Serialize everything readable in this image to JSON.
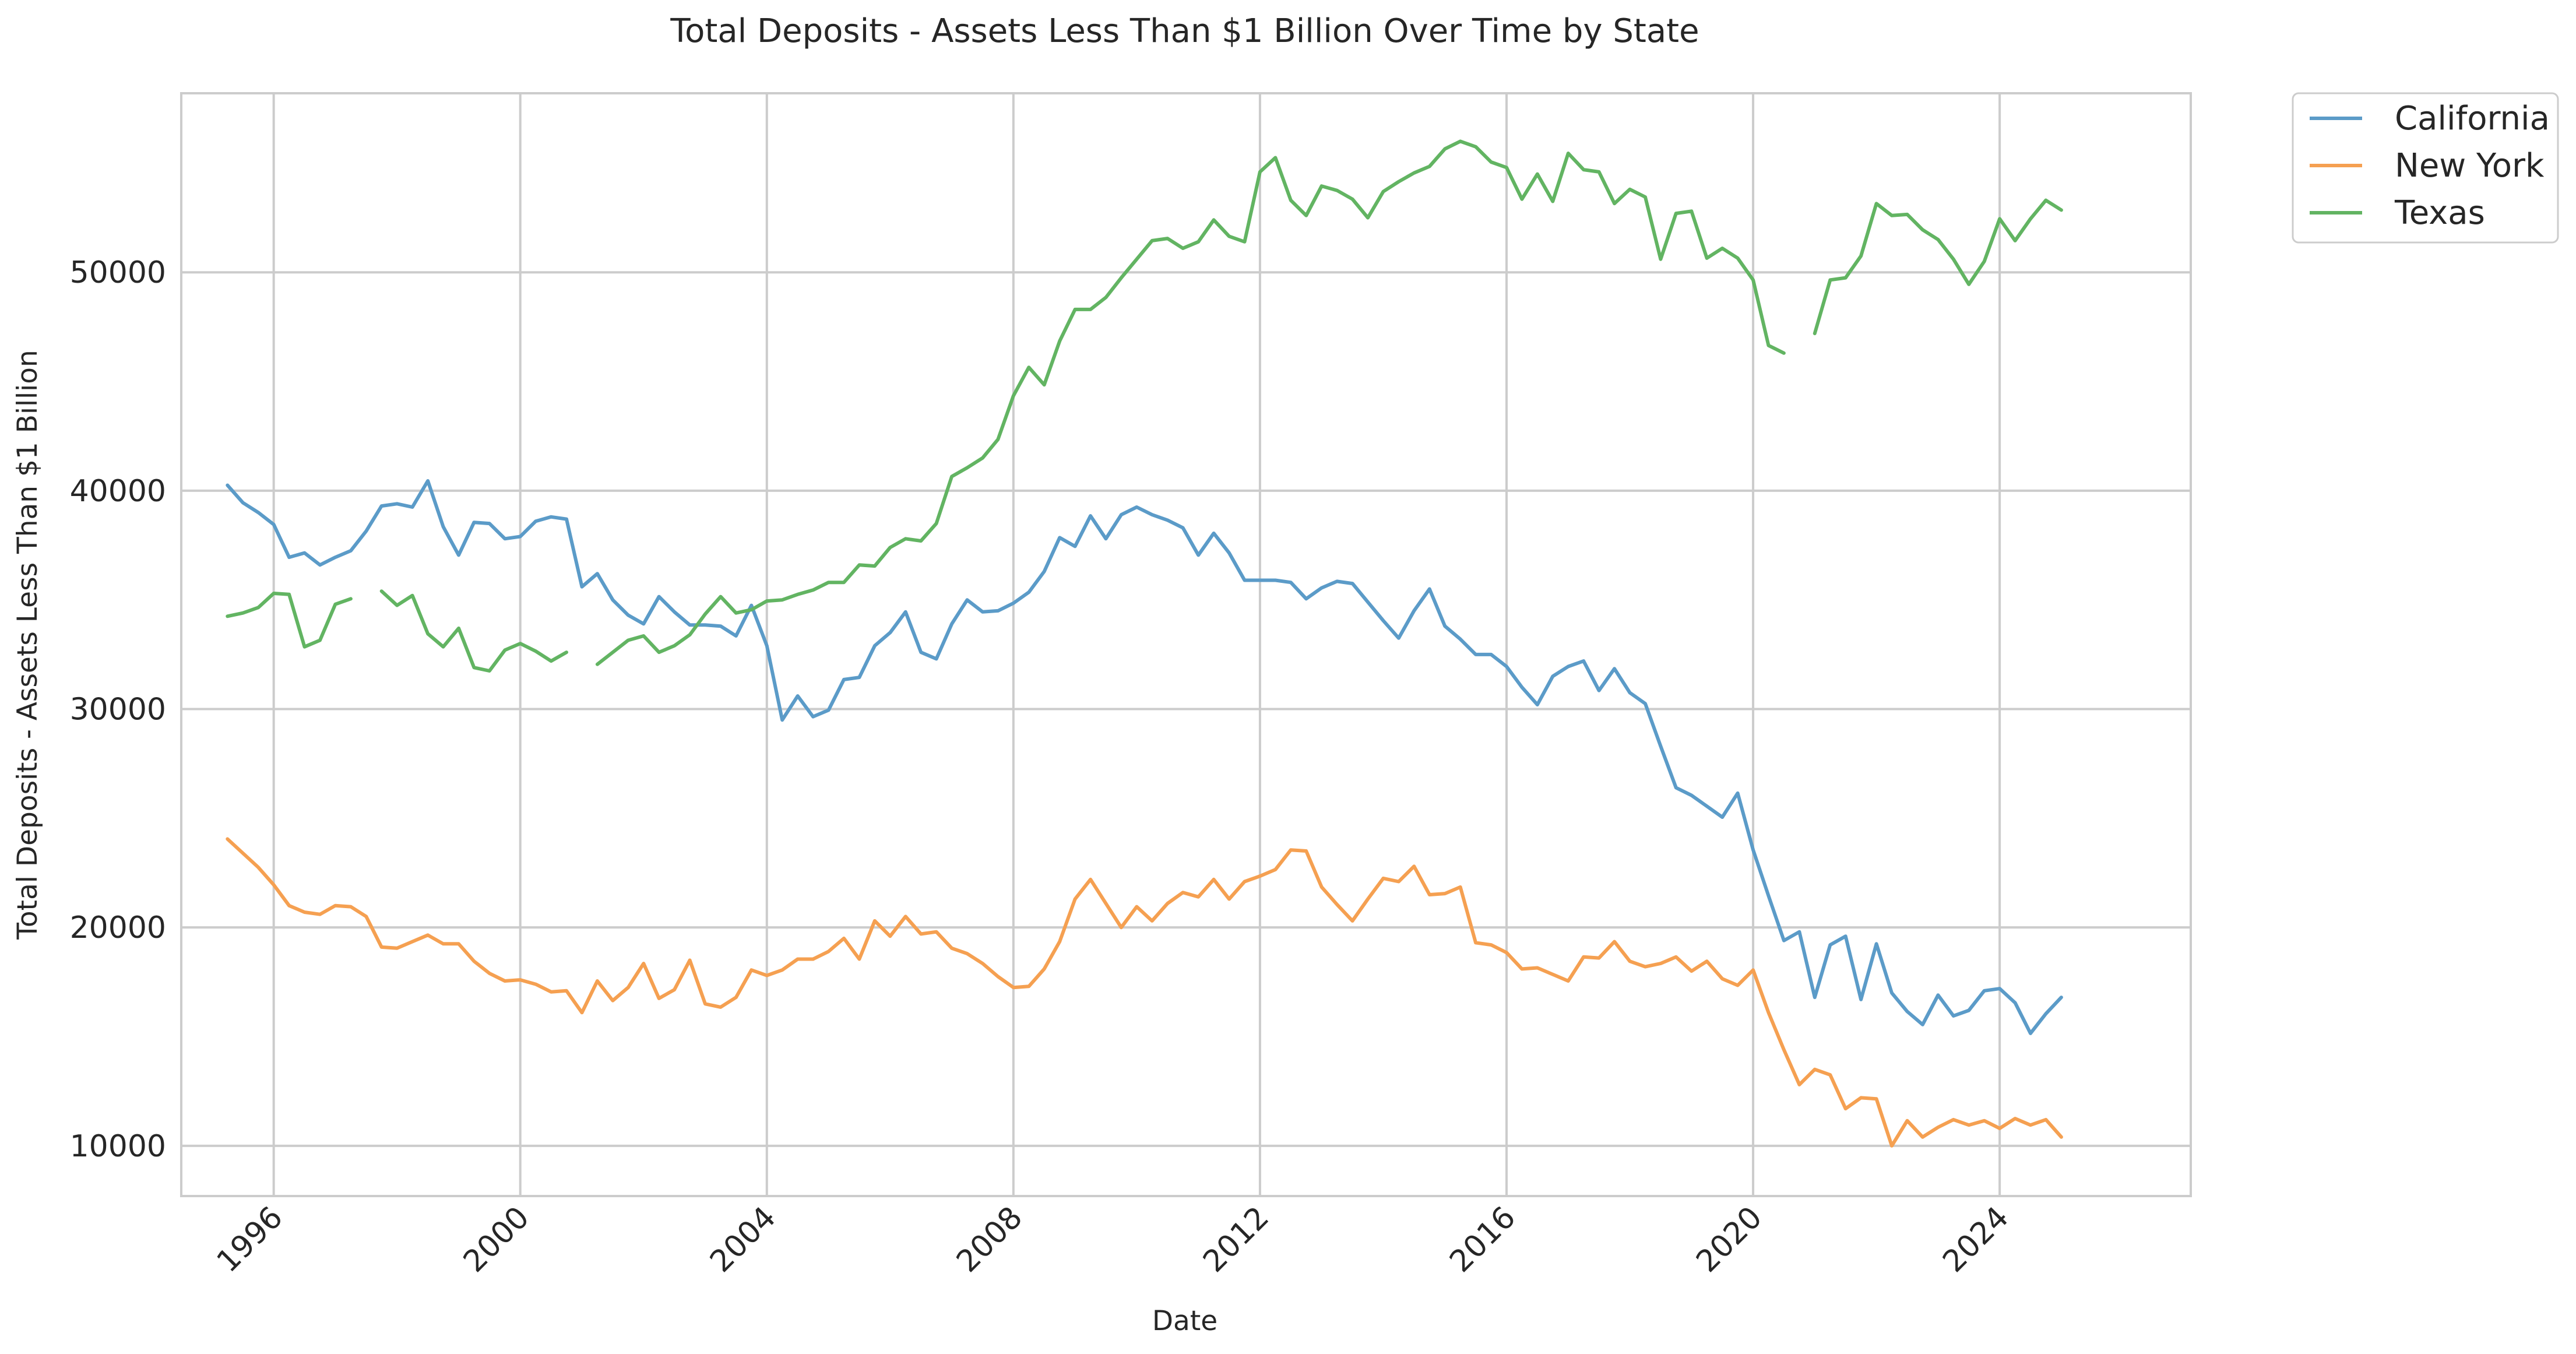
{
  "chart_data": {
    "type": "line",
    "title": "Total Deposits - Assets Less Than $1 Billion Over Time by State",
    "xlabel": "Date",
    "ylabel": "Total Deposits - Assets Less Than $1 Billion",
    "x_tick_labels": [
      "1996",
      "2000",
      "2004",
      "2008",
      "2012",
      "2016",
      "2020",
      "2024"
    ],
    "y_ticks": [
      10000,
      20000,
      30000,
      40000,
      50000
    ],
    "y_tick_labels": [
      "10000",
      "20000",
      "30000",
      "40000",
      "50000"
    ],
    "xlim": [
      1994.5,
      2027.1
    ],
    "ylim": [
      7700,
      58200
    ],
    "grid": true,
    "legend_position": "outside top-right",
    "x_start": 1995.25,
    "x_step": 0.25,
    "series": [
      {
        "name": "California",
        "color": "#5b9bc8",
        "values": [
          40250,
          39450,
          39000,
          38450,
          36950,
          37150,
          36600,
          36950,
          37250,
          38150,
          39300,
          39400,
          39250,
          40450,
          38350,
          37050,
          38550,
          38500,
          37800,
          37900,
          38600,
          38800,
          38700,
          35600,
          36200,
          35000,
          34300,
          33900,
          35150,
          34450,
          33850,
          33850,
          33800,
          33350,
          34750,
          32900,
          29500,
          30600,
          29650,
          29950,
          31350,
          31450,
          32900,
          33500,
          34450,
          32600,
          32300,
          33900,
          35000,
          34450,
          34500,
          34850,
          35350,
          36300,
          37850,
          37450,
          38850,
          37800,
          38900,
          39250,
          38900,
          38650,
          38300,
          37050,
          38050,
          37150,
          35900,
          35900,
          35900,
          35800,
          35050,
          35550,
          35850,
          35750,
          34900,
          34050,
          33250,
          34500,
          35500,
          33800,
          33200,
          32500,
          32500,
          31950,
          31000,
          30200,
          31500,
          31950,
          32200,
          30850,
          31850,
          30750,
          30250,
          28300,
          26400,
          26050,
          25550,
          25050,
          26150,
          23550,
          21450,
          19400,
          19800,
          16800,
          19200,
          19600,
          16700,
          19250,
          17000,
          16150,
          15550,
          16900,
          15950,
          16200,
          17100,
          17200,
          16550,
          15150,
          16050,
          16800
        ]
      },
      {
        "name": "New York",
        "color": "#f5a051",
        "values": [
          24050,
          23400,
          22750,
          21950,
          21000,
          20700,
          20600,
          21000,
          20950,
          20500,
          19100,
          19050,
          19350,
          19650,
          19250,
          19250,
          18450,
          17900,
          17550,
          17600,
          17400,
          17050,
          17100,
          16100,
          17550,
          16650,
          17250,
          18350,
          16750,
          17150,
          18500,
          16500,
          16350,
          16800,
          18050,
          17800,
          18050,
          18550,
          18550,
          18900,
          19500,
          18550,
          20300,
          19600,
          20500,
          19700,
          19800,
          19050,
          18800,
          18350,
          17750,
          17250,
          17300,
          18100,
          19350,
          21300,
          22200,
          21100,
          20000,
          20950,
          20300,
          21100,
          21600,
          21400,
          22200,
          21300,
          22100,
          22350,
          22650,
          23550,
          23500,
          21850,
          21050,
          20300,
          21300,
          22250,
          22100,
          22800,
          21500,
          21550,
          21850,
          19300,
          19200,
          18850,
          18100,
          18150,
          17850,
          17550,
          18650,
          18600,
          19350,
          18450,
          18200,
          18350,
          18650,
          18000,
          18450,
          17650,
          17350,
          18050,
          16100,
          14400,
          12800,
          13500,
          13250,
          11700,
          12200,
          12150,
          10000,
          11150,
          10400,
          10850,
          11200,
          10950,
          11150,
          10800,
          11250,
          10950,
          11200,
          10400
        ]
      },
      {
        "name": "Texas",
        "color": "#62b462",
        "values": [
          34250,
          34400,
          34650,
          35300,
          35250,
          32850,
          33150,
          34800,
          35050,
          null,
          35400,
          34750,
          35200,
          33450,
          32850,
          33700,
          31900,
          31750,
          32700,
          33000,
          32650,
          32200,
          32600,
          null,
          32050,
          32600,
          33150,
          33350,
          32600,
          32900,
          33400,
          34350,
          35150,
          34400,
          34550,
          34950,
          35000,
          35250,
          35450,
          35800,
          35800,
          36600,
          36550,
          37400,
          37800,
          37700,
          38500,
          40650,
          41050,
          41500,
          42350,
          44350,
          45650,
          44850,
          46850,
          48300,
          48300,
          48850,
          49750,
          50600,
          51450,
          51550,
          51100,
          51400,
          52400,
          51650,
          51400,
          54600,
          55250,
          53300,
          52600,
          53950,
          53750,
          53350,
          52500,
          53700,
          54150,
          54550,
          54850,
          55650,
          56000,
          55750,
          55050,
          54800,
          53350,
          54500,
          53250,
          55450,
          54700,
          54600,
          53150,
          53800,
          53450,
          50600,
          52700,
          52800,
          50650,
          51100,
          50650,
          49650,
          46650,
          46300,
          null,
          47200,
          49650,
          49750,
          50750,
          53150,
          52600,
          52650,
          51950,
          51500,
          50600,
          49450,
          50500,
          52450,
          51450,
          52450,
          53300,
          52850
        ]
      }
    ]
  }
}
